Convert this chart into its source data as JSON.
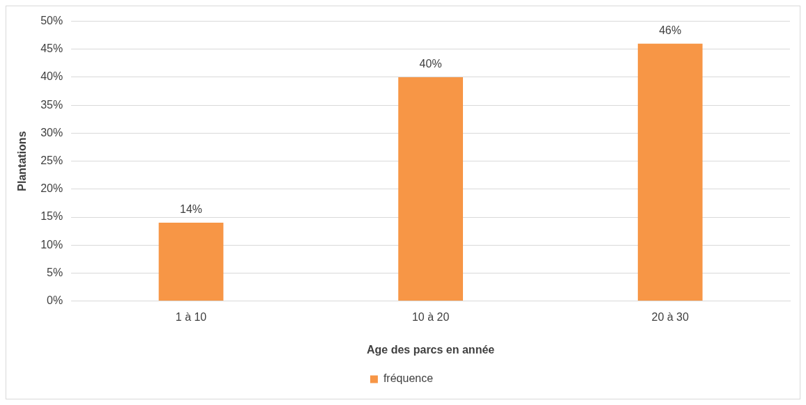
{
  "chart_data": {
    "type": "bar",
    "xlabel": "Age des parcs en année",
    "ylabel": "Plantations",
    "categories": [
      "1 à 10",
      "10 à 20",
      "20 à 30"
    ],
    "series": [
      {
        "name": "fréquence",
        "color": "#f79646",
        "values": [
          14,
          40,
          46
        ]
      }
    ],
    "value_labels": [
      "14%",
      "40%",
      "46%"
    ],
    "ylim": [
      0,
      50
    ],
    "yticks": [
      {
        "value": 0,
        "label": "0%"
      },
      {
        "value": 5,
        "label": "5%"
      },
      {
        "value": 10,
        "label": "10%"
      },
      {
        "value": 15,
        "label": "15%"
      },
      {
        "value": 20,
        "label": "20%"
      },
      {
        "value": 25,
        "label": "25%"
      },
      {
        "value": 30,
        "label": "30%"
      },
      {
        "value": 35,
        "label": "35%"
      },
      {
        "value": 40,
        "label": "40%"
      },
      {
        "value": 45,
        "label": "45%"
      },
      {
        "value": 50,
        "label": "50%"
      }
    ],
    "grid": "y",
    "legend": "bottom"
  }
}
